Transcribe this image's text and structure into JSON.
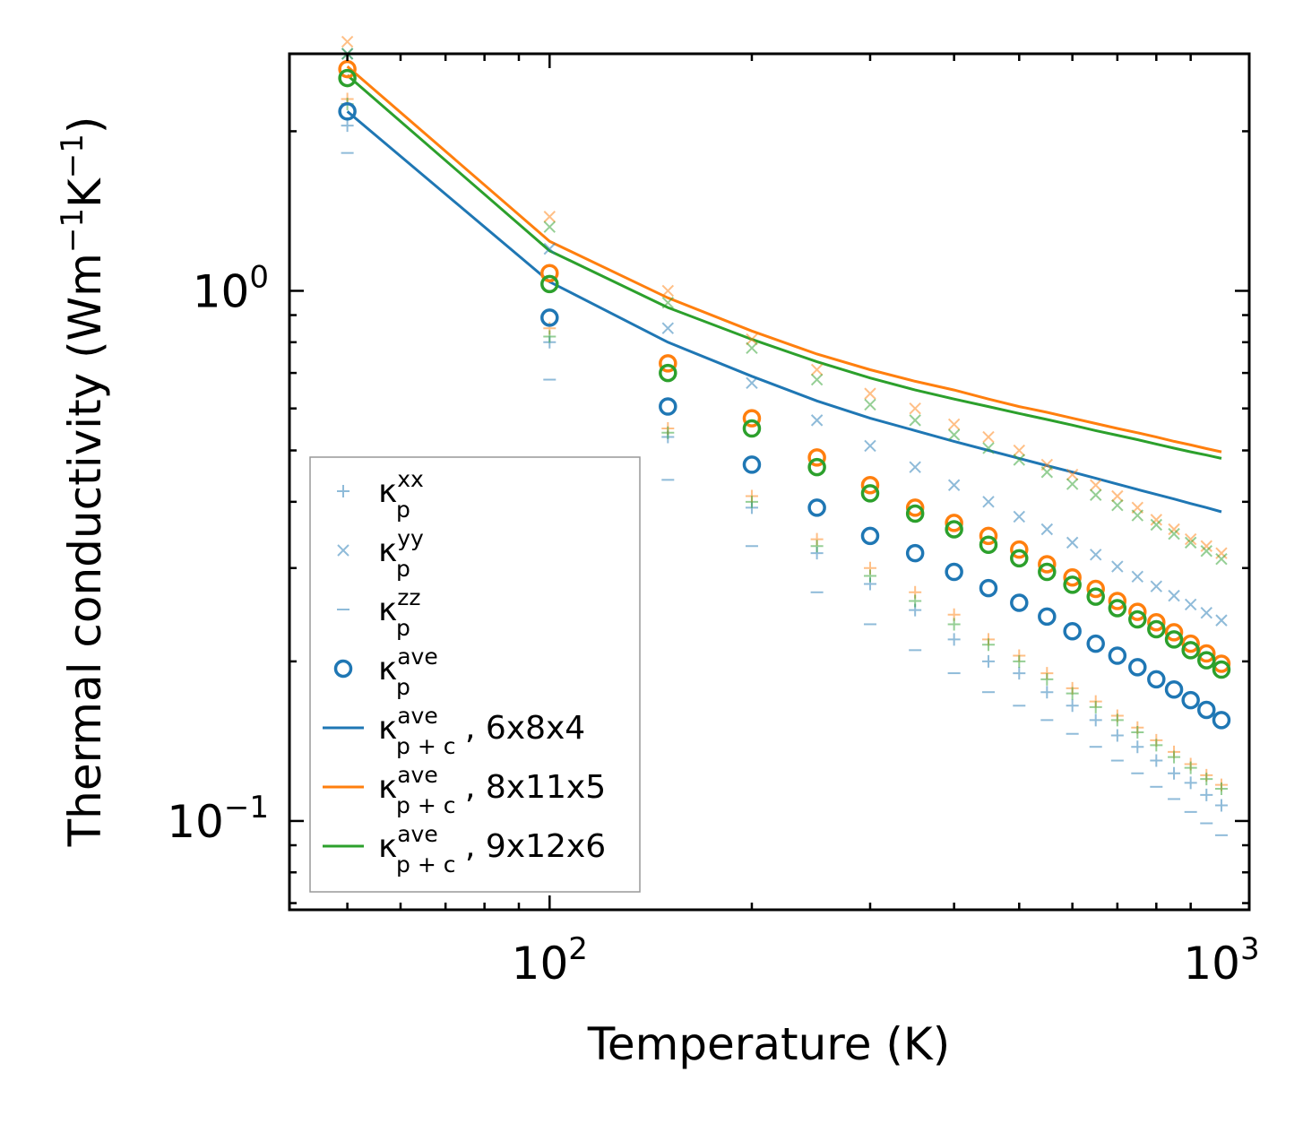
{
  "chart_data": {
    "type": "scatter",
    "title": "",
    "xlabel": "Temperature (K)",
    "ylabel_main": "Thermal conductivity (Wm",
    "ylabel_sup1": "−1",
    "ylabel_mid": "K",
    "ylabel_sup2": "−1",
    "ylabel_end": ")",
    "xscale": "log",
    "yscale": "log",
    "xlim": [
      41,
      1100
    ],
    "ylim": [
      0.068,
      2.8
    ],
    "x_ticks": [
      {
        "base": "10",
        "exp": "2",
        "value": 100
      },
      {
        "base": "10",
        "exp": "3",
        "value": 1000
      }
    ],
    "y_ticks": [
      {
        "base": "10",
        "exp": "0",
        "value": 1.0
      },
      {
        "base": "10",
        "exp": "−1",
        "value": 0.1
      }
    ],
    "legend_position": "lower-left",
    "colors": {
      "blue": "#1f77b4",
      "orange": "#ff7f0e",
      "green": "#2ca02c"
    },
    "x": [
      50,
      100,
      150,
      200,
      250,
      300,
      350,
      400,
      450,
      500,
      550,
      600,
      650,
      700,
      750,
      800,
      850,
      900,
      950,
      1000
    ],
    "series": [
      {
        "name": "kxx_blue",
        "marker": "plus",
        "color": "#1f77b4",
        "faded": true,
        "values": [
          2.05,
          0.8,
          0.53,
          0.39,
          0.32,
          0.28,
          0.25,
          0.22,
          0.2,
          0.19,
          0.175,
          0.165,
          0.155,
          0.145,
          0.138,
          0.13,
          0.123,
          0.118,
          0.112,
          0.107
        ]
      },
      {
        "name": "kyy_blue",
        "marker": "cross",
        "color": "#1f77b4",
        "faded": true,
        "values": [
          2.8,
          1.2,
          0.85,
          0.67,
          0.57,
          0.51,
          0.465,
          0.43,
          0.4,
          0.375,
          0.355,
          0.335,
          0.318,
          0.302,
          0.289,
          0.277,
          0.266,
          0.256,
          0.247,
          0.239
        ]
      },
      {
        "name": "kzz_blue",
        "marker": "dash",
        "color": "#1f77b4",
        "faded": true,
        "values": [
          1.82,
          0.68,
          0.44,
          0.33,
          0.27,
          0.235,
          0.21,
          0.19,
          0.175,
          0.165,
          0.155,
          0.146,
          0.138,
          0.13,
          0.123,
          0.116,
          0.11,
          0.104,
          0.099,
          0.094
        ]
      },
      {
        "name": "kxx_orange",
        "marker": "plus",
        "color": "#ff7f0e",
        "faded": true,
        "values": [
          2.3,
          0.85,
          0.55,
          0.41,
          0.34,
          0.3,
          0.27,
          0.245,
          0.22,
          0.205,
          0.19,
          0.178,
          0.168,
          0.158,
          0.15,
          0.142,
          0.135,
          0.128,
          0.122,
          0.117
        ]
      },
      {
        "name": "kyy_orange",
        "marker": "cross",
        "color": "#ff7f0e",
        "faded": true,
        "values": [
          2.95,
          1.38,
          1.0,
          0.81,
          0.71,
          0.64,
          0.6,
          0.56,
          0.53,
          0.5,
          0.47,
          0.45,
          0.43,
          0.41,
          0.39,
          0.37,
          0.355,
          0.34,
          0.33,
          0.32
        ]
      },
      {
        "name": "kxx_green",
        "marker": "plus",
        "color": "#2ca02c",
        "faded": true,
        "values": [
          2.25,
          0.82,
          0.54,
          0.4,
          0.33,
          0.29,
          0.26,
          0.235,
          0.215,
          0.2,
          0.185,
          0.174,
          0.164,
          0.155,
          0.147,
          0.139,
          0.132,
          0.126,
          0.12,
          0.115
        ]
      },
      {
        "name": "kyy_green",
        "marker": "cross",
        "color": "#2ca02c",
        "faded": true,
        "values": [
          2.8,
          1.32,
          0.95,
          0.78,
          0.68,
          0.61,
          0.57,
          0.535,
          0.505,
          0.48,
          0.455,
          0.432,
          0.412,
          0.394,
          0.377,
          0.362,
          0.348,
          0.335,
          0.323,
          0.312
        ]
      },
      {
        "name": "kave_blue",
        "marker": "circle",
        "color": "#1f77b4",
        "faded": false,
        "values": [
          2.18,
          0.89,
          0.605,
          0.47,
          0.39,
          0.345,
          0.32,
          0.295,
          0.275,
          0.258,
          0.243,
          0.228,
          0.216,
          0.205,
          0.195,
          0.185,
          0.177,
          0.169,
          0.162,
          0.155
        ]
      },
      {
        "name": "kave_orange",
        "marker": "circle",
        "color": "#ff7f0e",
        "faded": false,
        "values": [
          2.62,
          1.08,
          0.73,
          0.575,
          0.485,
          0.43,
          0.39,
          0.365,
          0.345,
          0.325,
          0.305,
          0.288,
          0.274,
          0.26,
          0.248,
          0.237,
          0.227,
          0.216,
          0.207,
          0.198
        ]
      },
      {
        "name": "kave_green",
        "marker": "circle",
        "color": "#2ca02c",
        "faded": false,
        "values": [
          2.52,
          1.03,
          0.7,
          0.55,
          0.465,
          0.415,
          0.38,
          0.355,
          0.332,
          0.313,
          0.295,
          0.279,
          0.265,
          0.252,
          0.24,
          0.23,
          0.22,
          0.21,
          0.201,
          0.193
        ]
      },
      {
        "name": "kpc_6x8x4",
        "marker": "line",
        "color": "#1f77b4",
        "faded": false,
        "values": [
          2.18,
          1.04,
          0.8,
          0.69,
          0.62,
          0.575,
          0.545,
          0.52,
          0.5,
          0.483,
          0.468,
          0.455,
          0.443,
          0.432,
          0.422,
          0.413,
          0.405,
          0.397,
          0.39,
          0.383
        ]
      },
      {
        "name": "kpc_8x11x5",
        "marker": "line",
        "color": "#ff7f0e",
        "faded": false,
        "values": [
          2.65,
          1.24,
          0.97,
          0.84,
          0.76,
          0.71,
          0.675,
          0.65,
          0.625,
          0.605,
          0.59,
          0.575,
          0.562,
          0.55,
          0.54,
          0.53,
          0.52,
          0.512,
          0.504,
          0.497
        ]
      },
      {
        "name": "kpc_9x12x6",
        "marker": "line",
        "color": "#2ca02c",
        "faded": false,
        "values": [
          2.55,
          1.19,
          0.93,
          0.81,
          0.735,
          0.685,
          0.65,
          0.625,
          0.605,
          0.587,
          0.572,
          0.558,
          0.545,
          0.534,
          0.524,
          0.514,
          0.505,
          0.497,
          0.49,
          0.483
        ]
      }
    ],
    "legend": [
      {
        "kind": "plus",
        "color": "#1f77b4",
        "faded": true,
        "base": "κ",
        "sup": "xx",
        "sub": "p",
        "suffix": ""
      },
      {
        "kind": "cross",
        "color": "#1f77b4",
        "faded": true,
        "base": "κ",
        "sup": "yy",
        "sub": "p",
        "suffix": ""
      },
      {
        "kind": "dash",
        "color": "#1f77b4",
        "faded": true,
        "base": "κ",
        "sup": "zz",
        "sub": "p",
        "suffix": ""
      },
      {
        "kind": "circle",
        "color": "#1f77b4",
        "faded": false,
        "base": "κ",
        "sup": "ave",
        "sub": "p",
        "suffix": ""
      },
      {
        "kind": "line",
        "color": "#1f77b4",
        "faded": false,
        "base": "κ",
        "sup": "ave",
        "sub": "p + c",
        "suffix": ", 6x8x4"
      },
      {
        "kind": "line",
        "color": "#ff7f0e",
        "faded": false,
        "base": "κ",
        "sup": "ave",
        "sub": "p + c",
        "suffix": ", 8x11x5"
      },
      {
        "kind": "line",
        "color": "#2ca02c",
        "faded": false,
        "base": "κ",
        "sup": "ave",
        "sub": "p + c",
        "suffix": ", 9x12x6"
      }
    ]
  }
}
